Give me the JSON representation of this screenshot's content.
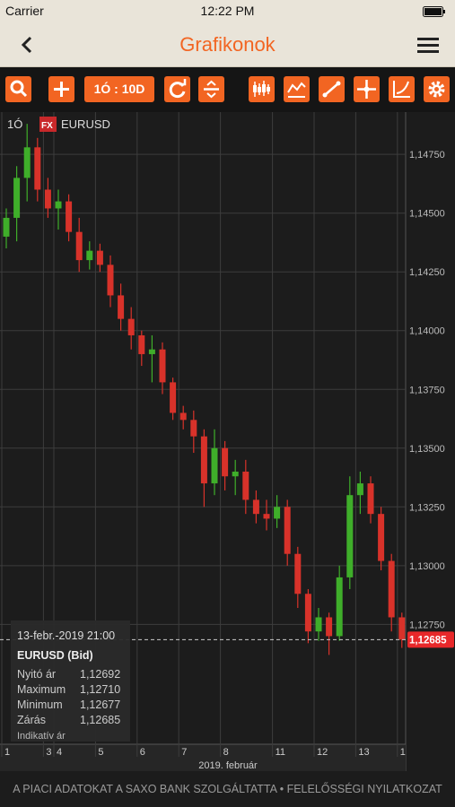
{
  "status": {
    "carrier": "Carrier",
    "time": "12:22 PM"
  },
  "header": {
    "title": "Grafikonok"
  },
  "toolbar": {
    "period": "1Ó : 10D"
  },
  "instrument": {
    "interval": "1Ó",
    "badge": "FX",
    "symbol": "EURUSD"
  },
  "chart_data": {
    "type": "candlestick",
    "x_title": "2019. február",
    "categories": [
      "1",
      null,
      null,
      null,
      "3",
      "4",
      null,
      null,
      null,
      "5",
      null,
      null,
      null,
      "6",
      null,
      null,
      null,
      "7",
      null,
      null,
      null,
      "8",
      null,
      null,
      null,
      null,
      "11",
      null,
      null,
      null,
      "12",
      null,
      null,
      null,
      "13",
      null,
      null,
      null,
      "1"
    ],
    "open": [
      1.144,
      1.1448,
      1.1465,
      1.1478,
      1.146,
      1.1452,
      1.1455,
      1.1442,
      1.143,
      1.1434,
      1.1428,
      1.1415,
      1.1405,
      1.1398,
      1.139,
      1.1392,
      1.1378,
      1.1365,
      1.1362,
      1.1355,
      1.1335,
      1.135,
      1.1338,
      1.134,
      1.1328,
      1.1322,
      1.132,
      1.1325,
      1.1305,
      1.1288,
      1.1272,
      1.1278,
      1.127,
      1.1295,
      1.133,
      1.1335,
      1.1322,
      1.1302,
      1.1278
    ],
    "high": [
      1.1452,
      1.147,
      1.1488,
      1.1482,
      1.1465,
      1.146,
      1.1458,
      1.1448,
      1.1438,
      1.1437,
      1.1432,
      1.142,
      1.141,
      1.14,
      1.1398,
      1.1395,
      1.138,
      1.1368,
      1.1366,
      1.1358,
      1.1358,
      1.1353,
      1.1345,
      1.1345,
      1.1332,
      1.1328,
      1.133,
      1.1328,
      1.1308,
      1.129,
      1.1282,
      1.128,
      1.13,
      1.1338,
      1.134,
      1.1338,
      1.1325,
      1.1305,
      1.128
    ],
    "low": [
      1.1435,
      1.1438,
      1.1455,
      1.1455,
      1.1448,
      1.1443,
      1.1438,
      1.1425,
      1.1426,
      1.1425,
      1.141,
      1.14,
      1.1392,
      1.1385,
      1.1378,
      1.1373,
      1.1362,
      1.1358,
      1.1348,
      1.1325,
      1.133,
      1.1332,
      1.133,
      1.1322,
      1.1318,
      1.1315,
      1.1316,
      1.13,
      1.1282,
      1.1267,
      1.1268,
      1.1262,
      1.1268,
      1.129,
      1.1322,
      1.1318,
      1.1298,
      1.1272,
      1.1265
    ],
    "close": [
      1.1448,
      1.1465,
      1.1478,
      1.146,
      1.1452,
      1.1455,
      1.1442,
      1.143,
      1.1434,
      1.1428,
      1.1415,
      1.1405,
      1.1398,
      1.139,
      1.1392,
      1.1378,
      1.1365,
      1.1362,
      1.1355,
      1.1335,
      1.135,
      1.1338,
      1.134,
      1.1328,
      1.1322,
      1.132,
      1.1325,
      1.1305,
      1.1288,
      1.1272,
      1.1278,
      1.127,
      1.1295,
      1.133,
      1.1335,
      1.1322,
      1.1302,
      1.1278,
      1.12685
    ],
    "up_color": "#3fae2a",
    "down_color": "#d8322a",
    "ylim": [
      1.1224,
      1.1493
    ],
    "yticks": [
      {
        "value": 1.1475,
        "label": "1,14750"
      },
      {
        "value": 1.145,
        "label": "1,14500"
      },
      {
        "value": 1.1425,
        "label": "1,14250"
      },
      {
        "value": 1.14,
        "label": "1,14000"
      },
      {
        "value": 1.1375,
        "label": "1,13750"
      },
      {
        "value": 1.135,
        "label": "1,13500"
      },
      {
        "value": 1.1325,
        "label": "1,13250"
      },
      {
        "value": 1.13,
        "label": "1,13000"
      },
      {
        "value": 1.1275,
        "label": "1,12750"
      }
    ],
    "last_price": {
      "value": 1.12685,
      "label": "1,12685"
    },
    "grid": true
  },
  "tooltip": {
    "time": "13-febr.-2019 21:00",
    "title": "EURUSD (Bid)",
    "rows": [
      [
        "Nyitó ár",
        "1,12692"
      ],
      [
        "Maximum",
        "1,12710"
      ],
      [
        "Minimum",
        "1,12677"
      ],
      [
        "Zárás",
        "1,12685"
      ]
    ],
    "note": "Indikatív ár"
  },
  "footer": {
    "text": "A PIACI ADATOKAT A SAXO BANK SZOLGÁLTATTA • FELELŐSSÉGI NYILATKOZAT"
  }
}
